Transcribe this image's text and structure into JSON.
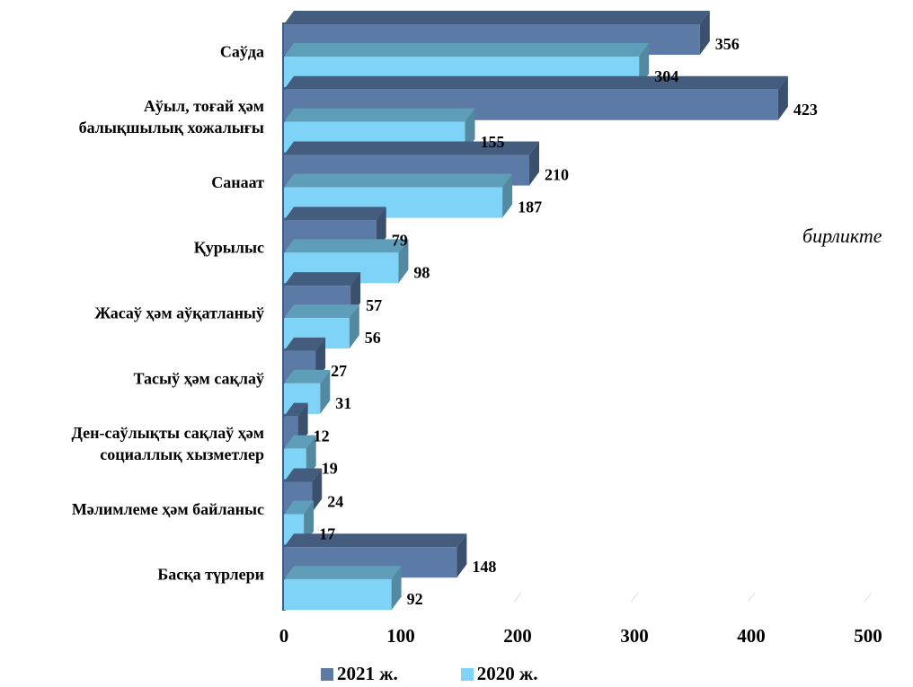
{
  "unit_label": "бирликте",
  "chart_data": {
    "type": "bar",
    "orientation": "horizontal",
    "style": "3d",
    "categories": [
      "Саўда",
      "Аўыл, тоғай ҳәм балықшылық хожалығы",
      "Санаат",
      "Қурылыс",
      "Жасаў ҳәм аўқатланыў",
      "Тасыў ҳәм сақлаў",
      "Ден-саўлықты сақлаў ҳәм социаллық хызметлер",
      "Мәлимлеме ҳәм байланыс",
      "Басқа түрлери"
    ],
    "category_lines": [
      [
        "Саўда"
      ],
      [
        "Аўыл, тоғай ҳәм",
        "балықшылық хожалығы"
      ],
      [
        "Санаат"
      ],
      [
        "Қурылыс"
      ],
      [
        "Жасаў ҳәм аўқатланыў"
      ],
      [
        "Тасыў ҳәм сақлаў"
      ],
      [
        "Ден-саўлықты сақлаў ҳәм",
        "социаллық хызметлер"
      ],
      [
        "Мәлимлеме ҳәм байланыс"
      ],
      [
        "Басқа түрлери"
      ]
    ],
    "series": [
      {
        "name": "2021 ж.",
        "color": "#5B7BA6",
        "values": [
          356,
          423,
          210,
          79,
          57,
          27,
          12,
          24,
          148
        ]
      },
      {
        "name": "2020 ж.",
        "color": "#7FD3F7",
        "values": [
          304,
          155,
          187,
          98,
          56,
          31,
          19,
          17,
          92
        ]
      }
    ],
    "xlim": [
      0,
      500
    ],
    "xticks": [
      0,
      100,
      200,
      300,
      400,
      500
    ],
    "legend_position": "bottom",
    "grid": false
  }
}
